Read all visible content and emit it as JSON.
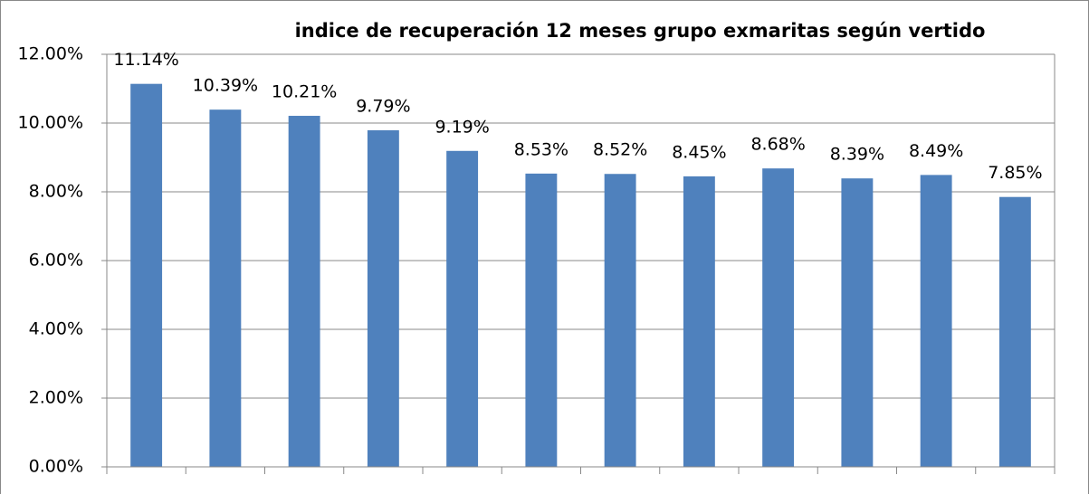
{
  "chart_data": {
    "type": "bar",
    "title": "indice de recuperación 12 meses grupo exmaritas según vertido",
    "categories": [
      null,
      null,
      null,
      null,
      null,
      null,
      null,
      null,
      null,
      null,
      null,
      null
    ],
    "values": [
      11.14,
      10.39,
      10.21,
      9.79,
      9.19,
      8.53,
      8.52,
      8.45,
      8.68,
      8.39,
      8.49,
      7.85
    ],
    "value_labels": [
      "11.14%",
      "10.39%",
      "10.21%",
      "9.79%",
      "9.19%",
      "8.53%",
      "8.52%",
      "8.45%",
      "8.68%",
      "8.39%",
      "8.49%",
      "7.85%"
    ],
    "color": "#4f81bd",
    "ylim": [
      0,
      12
    ],
    "yticks": [
      {
        "value": 0,
        "label": "0.00%"
      },
      {
        "value": 2,
        "label": "2.00%"
      },
      {
        "value": 4,
        "label": "4.00%"
      },
      {
        "value": 6,
        "label": "6.00%"
      },
      {
        "value": 8,
        "label": "8.00%"
      },
      {
        "value": 10,
        "label": "10.00%"
      },
      {
        "value": 12,
        "label": "12.00%"
      }
    ],
    "grid": true
  }
}
